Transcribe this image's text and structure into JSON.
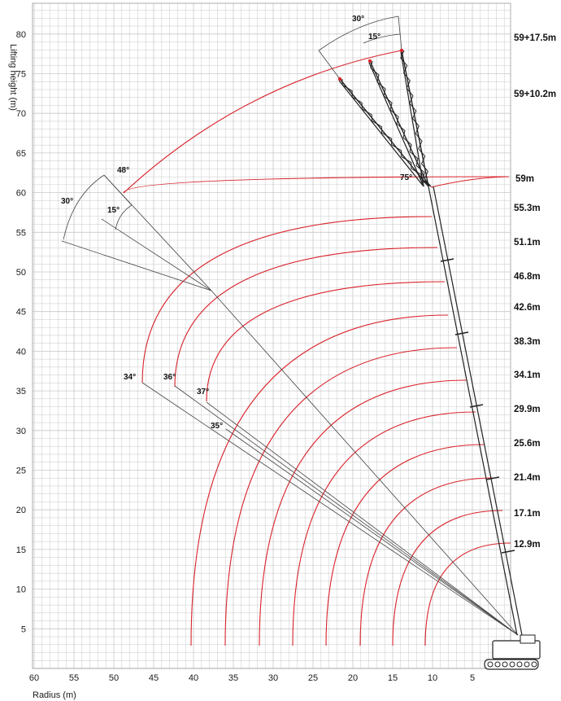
{
  "axes": {
    "y_title": "Lifting height (m)",
    "x_title": "Radius (m)",
    "x_ticks": [
      "60",
      "55",
      "50",
      "45",
      "40",
      "35",
      "30",
      "25",
      "20",
      "15",
      "10",
      "5"
    ],
    "y_ticks": [
      "5",
      "10",
      "15",
      "20",
      "25",
      "30",
      "35",
      "40",
      "45",
      "50",
      "55",
      "60",
      "65",
      "70",
      "75",
      "80"
    ],
    "x_range_m": [
      60,
      -2
    ],
    "y_range_m": [
      0,
      85
    ],
    "grid": true
  },
  "colors": {
    "arc": "#d9232b",
    "grid": "#c8c8c8",
    "line": "#444444",
    "crane": "#222222"
  },
  "boom_lengths": [
    {
      "label": "12.9m",
      "length_m": 12.9
    },
    {
      "label": "17.1m",
      "length_m": 17.1
    },
    {
      "label": "21.4m",
      "length_m": 21.4
    },
    {
      "label": "25.6m",
      "length_m": 25.6
    },
    {
      "label": "29.9m",
      "length_m": 29.9
    },
    {
      "label": "34.1m",
      "length_m": 34.1
    },
    {
      "label": "38.3m",
      "length_m": 38.3
    },
    {
      "label": "42.6m",
      "length_m": 42.6
    },
    {
      "label": "46.8m",
      "length_m": 46.8
    },
    {
      "label": "51.1m",
      "length_m": 51.1
    },
    {
      "label": "55.3m",
      "length_m": 55.3
    },
    {
      "label": "59m",
      "length_m": 59
    }
  ],
  "jib_labels": [
    "59+10.2m",
    "59+17.5m"
  ],
  "angle_labels": {
    "boom_75": "75°",
    "jib_offset_15": "15°",
    "jib_offset_30": "30°",
    "min_angles": [
      "34°",
      "36°",
      "37°",
      "35°"
    ],
    "left_48": "48°",
    "left_30": "30°",
    "left_15": "15°"
  }
}
